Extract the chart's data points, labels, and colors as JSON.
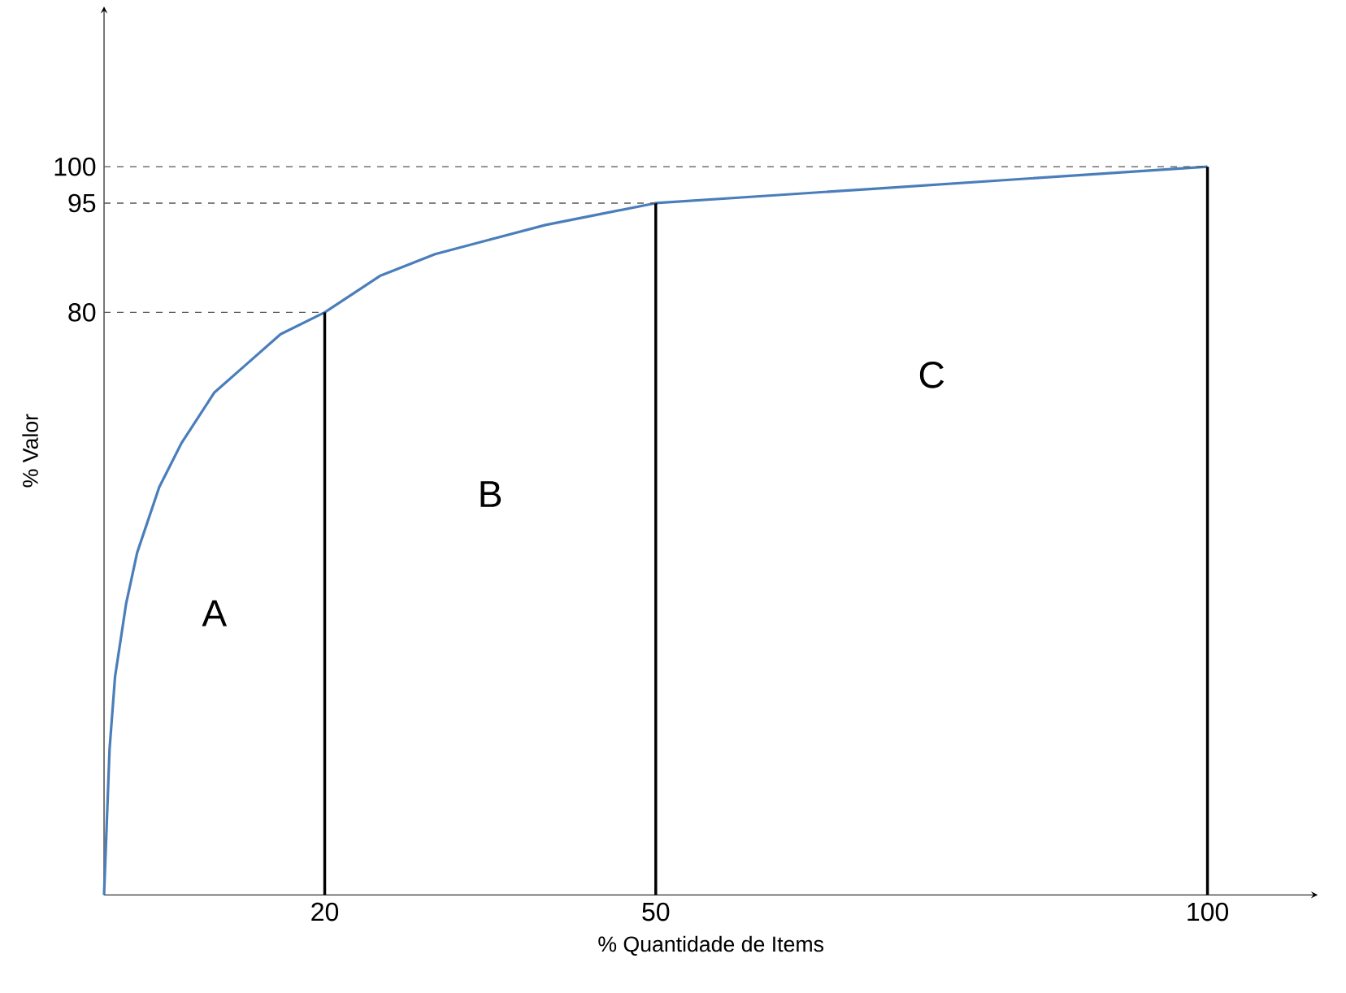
{
  "chart_data": {
    "type": "line",
    "xlabel": "% Quantidade de Items",
    "ylabel": "% Valor",
    "series": [
      {
        "color": "#4a7ebb",
        "x": [
          0,
          0.5,
          1,
          2,
          3,
          5,
          7,
          10,
          13,
          16,
          20,
          25,
          30,
          35,
          40,
          45,
          50,
          60,
          70,
          80,
          90,
          100
        ],
        "values": [
          0,
          20,
          30,
          40,
          47,
          56,
          62,
          69,
          73,
          77,
          80,
          85,
          88,
          90,
          92,
          93.5,
          95,
          96,
          97,
          98,
          99,
          100
        ]
      }
    ],
    "xlim": [
      0,
      110
    ],
    "ylim": [
      0,
      122
    ],
    "xticks": [
      20,
      50,
      100
    ],
    "yticks": [
      80,
      95,
      100
    ],
    "ref_lines": [
      {
        "axis": "x",
        "value": 20,
        "color": "#000000",
        "line_style": "solid"
      },
      {
        "axis": "x",
        "value": 50,
        "color": "#000000",
        "line_style": "solid"
      },
      {
        "axis": "x",
        "value": 100,
        "color": "#000000",
        "line_style": "solid"
      },
      {
        "axis": "y",
        "value": 80,
        "color": "#555555",
        "line_style": "dashed"
      },
      {
        "axis": "y",
        "value": 95,
        "color": "#555555",
        "line_style": "dashed"
      },
      {
        "axis": "y",
        "value": 100,
        "color": "#555555",
        "line_style": "dashed"
      }
    ],
    "annotations": [
      "A",
      "B",
      "C"
    ],
    "grid": false,
    "marker": "none",
    "line_style": "solid"
  }
}
